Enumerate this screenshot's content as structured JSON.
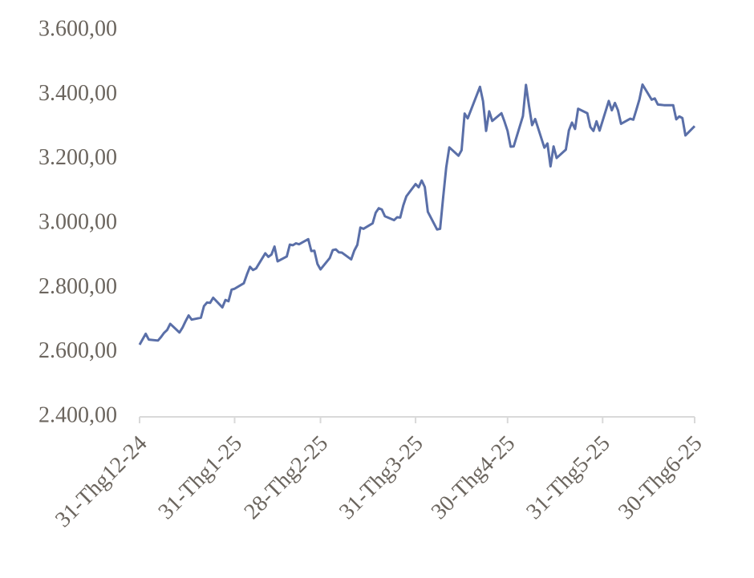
{
  "chart_data": {
    "type": "line",
    "x": [
      "2024-12-31",
      "2025-01-02",
      "2025-01-03",
      "2025-01-06",
      "2025-01-07",
      "2025-01-08",
      "2025-01-09",
      "2025-01-10",
      "2025-01-13",
      "2025-01-14",
      "2025-01-15",
      "2025-01-16",
      "2025-01-17",
      "2025-01-20",
      "2025-01-21",
      "2025-01-22",
      "2025-01-23",
      "2025-01-24",
      "2025-01-27",
      "2025-01-28",
      "2025-01-29",
      "2025-01-30",
      "2025-01-31",
      "2025-02-03",
      "2025-02-04",
      "2025-02-05",
      "2025-02-06",
      "2025-02-07",
      "2025-02-10",
      "2025-02-11",
      "2025-02-12",
      "2025-02-13",
      "2025-02-14",
      "2025-02-17",
      "2025-02-18",
      "2025-02-19",
      "2025-02-20",
      "2025-02-21",
      "2025-02-24",
      "2025-02-25",
      "2025-02-26",
      "2025-02-27",
      "2025-02-28",
      "2025-03-03",
      "2025-03-04",
      "2025-03-05",
      "2025-03-06",
      "2025-03-07",
      "2025-03-10",
      "2025-03-11",
      "2025-03-12",
      "2025-03-13",
      "2025-03-14",
      "2025-03-17",
      "2025-03-18",
      "2025-03-19",
      "2025-03-20",
      "2025-03-21",
      "2025-03-24",
      "2025-03-25",
      "2025-03-26",
      "2025-03-27",
      "2025-03-28",
      "2025-03-31",
      "2025-04-01",
      "2025-04-02",
      "2025-04-03",
      "2025-04-04",
      "2025-04-07",
      "2025-04-08",
      "2025-04-09",
      "2025-04-10",
      "2025-04-11",
      "2025-04-14",
      "2025-04-15",
      "2025-04-16",
      "2025-04-17",
      "2025-04-21",
      "2025-04-22",
      "2025-04-23",
      "2025-04-24",
      "2025-04-25",
      "2025-04-28",
      "2025-04-29",
      "2025-04-30",
      "2025-05-01",
      "2025-05-02",
      "2025-05-05",
      "2025-05-06",
      "2025-05-07",
      "2025-05-08",
      "2025-05-09",
      "2025-05-12",
      "2025-05-13",
      "2025-05-14",
      "2025-05-15",
      "2025-05-16",
      "2025-05-19",
      "2025-05-20",
      "2025-05-21",
      "2025-05-22",
      "2025-05-23",
      "2025-05-26",
      "2025-05-27",
      "2025-05-28",
      "2025-05-29",
      "2025-05-30",
      "2025-06-02",
      "2025-06-03",
      "2025-06-04",
      "2025-06-05",
      "2025-06-06",
      "2025-06-09",
      "2025-06-10",
      "2025-06-11",
      "2025-06-12",
      "2025-06-13",
      "2025-06-16",
      "2025-06-17",
      "2025-06-18",
      "2025-06-19",
      "2025-06-20",
      "2025-06-23",
      "2025-06-24",
      "2025-06-25",
      "2025-06-26",
      "2025-06-27",
      "2025-06-30"
    ],
    "series": [
      {
        "color": "#5a6fa8",
        "values": [
          2624,
          2658,
          2640,
          2637,
          2648,
          2661,
          2670,
          2689,
          2662,
          2677,
          2697,
          2715,
          2702,
          2708,
          2744,
          2755,
          2754,
          2770,
          2740,
          2763,
          2759,
          2795,
          2798,
          2815,
          2842,
          2866,
          2856,
          2861,
          2908,
          2897,
          2904,
          2929,
          2883,
          2898,
          2935,
          2933,
          2939,
          2936,
          2952,
          2915,
          2916,
          2875,
          2858,
          2893,
          2918,
          2920,
          2911,
          2910,
          2889,
          2916,
          2934,
          2988,
          2984,
          3001,
          3034,
          3048,
          3044,
          3023,
          3011,
          3020,
          3019,
          3057,
          3085,
          3123,
          3113,
          3134,
          3114,
          3037,
          2982,
          2984,
          3082,
          3175,
          3237,
          3211,
          3228,
          3342,
          3327,
          3425,
          3380,
          3288,
          3349,
          3319,
          3343,
          3317,
          3288,
          3239,
          3240,
          3334,
          3431,
          3365,
          3306,
          3325,
          3236,
          3249,
          3178,
          3240,
          3204,
          3230,
          3290,
          3314,
          3294,
          3357,
          3343,
          3300,
          3288,
          3318,
          3289,
          3381,
          3352,
          3375,
          3352,
          3310,
          3326,
          3323,
          3354,
          3386,
          3432,
          3385,
          3389,
          3370,
          3369,
          3368,
          3368,
          3324,
          3333,
          3328,
          3274,
          3303
        ]
      }
    ],
    "xlim": [
      "2024-12-31",
      "2025-06-30"
    ],
    "xticks": [
      {
        "value": "2024-12-31",
        "label": "31-Thg12-24"
      },
      {
        "value": "2025-01-31",
        "label": "31-Thg1-25"
      },
      {
        "value": "2025-02-28",
        "label": "28-Thg2-25"
      },
      {
        "value": "2025-03-31",
        "label": "31-Thg3-25"
      },
      {
        "value": "2025-04-30",
        "label": "30-Thg4-25"
      },
      {
        "value": "2025-05-31",
        "label": "31-Thg5-25"
      },
      {
        "value": "2025-06-30",
        "label": "30-Thg6-25"
      }
    ],
    "ylim": [
      2400,
      3600
    ],
    "yticks": [
      {
        "value": 2400,
        "label": "2.400,00"
      },
      {
        "value": 2600,
        "label": "2.600,00"
      },
      {
        "value": 2800,
        "label": "2.800,00"
      },
      {
        "value": 3000,
        "label": "3.000,00"
      },
      {
        "value": 3200,
        "label": "3.200,00"
      },
      {
        "value": 3400,
        "label": "3.400,00"
      },
      {
        "value": 3600,
        "label": "3.600,00"
      }
    ]
  }
}
